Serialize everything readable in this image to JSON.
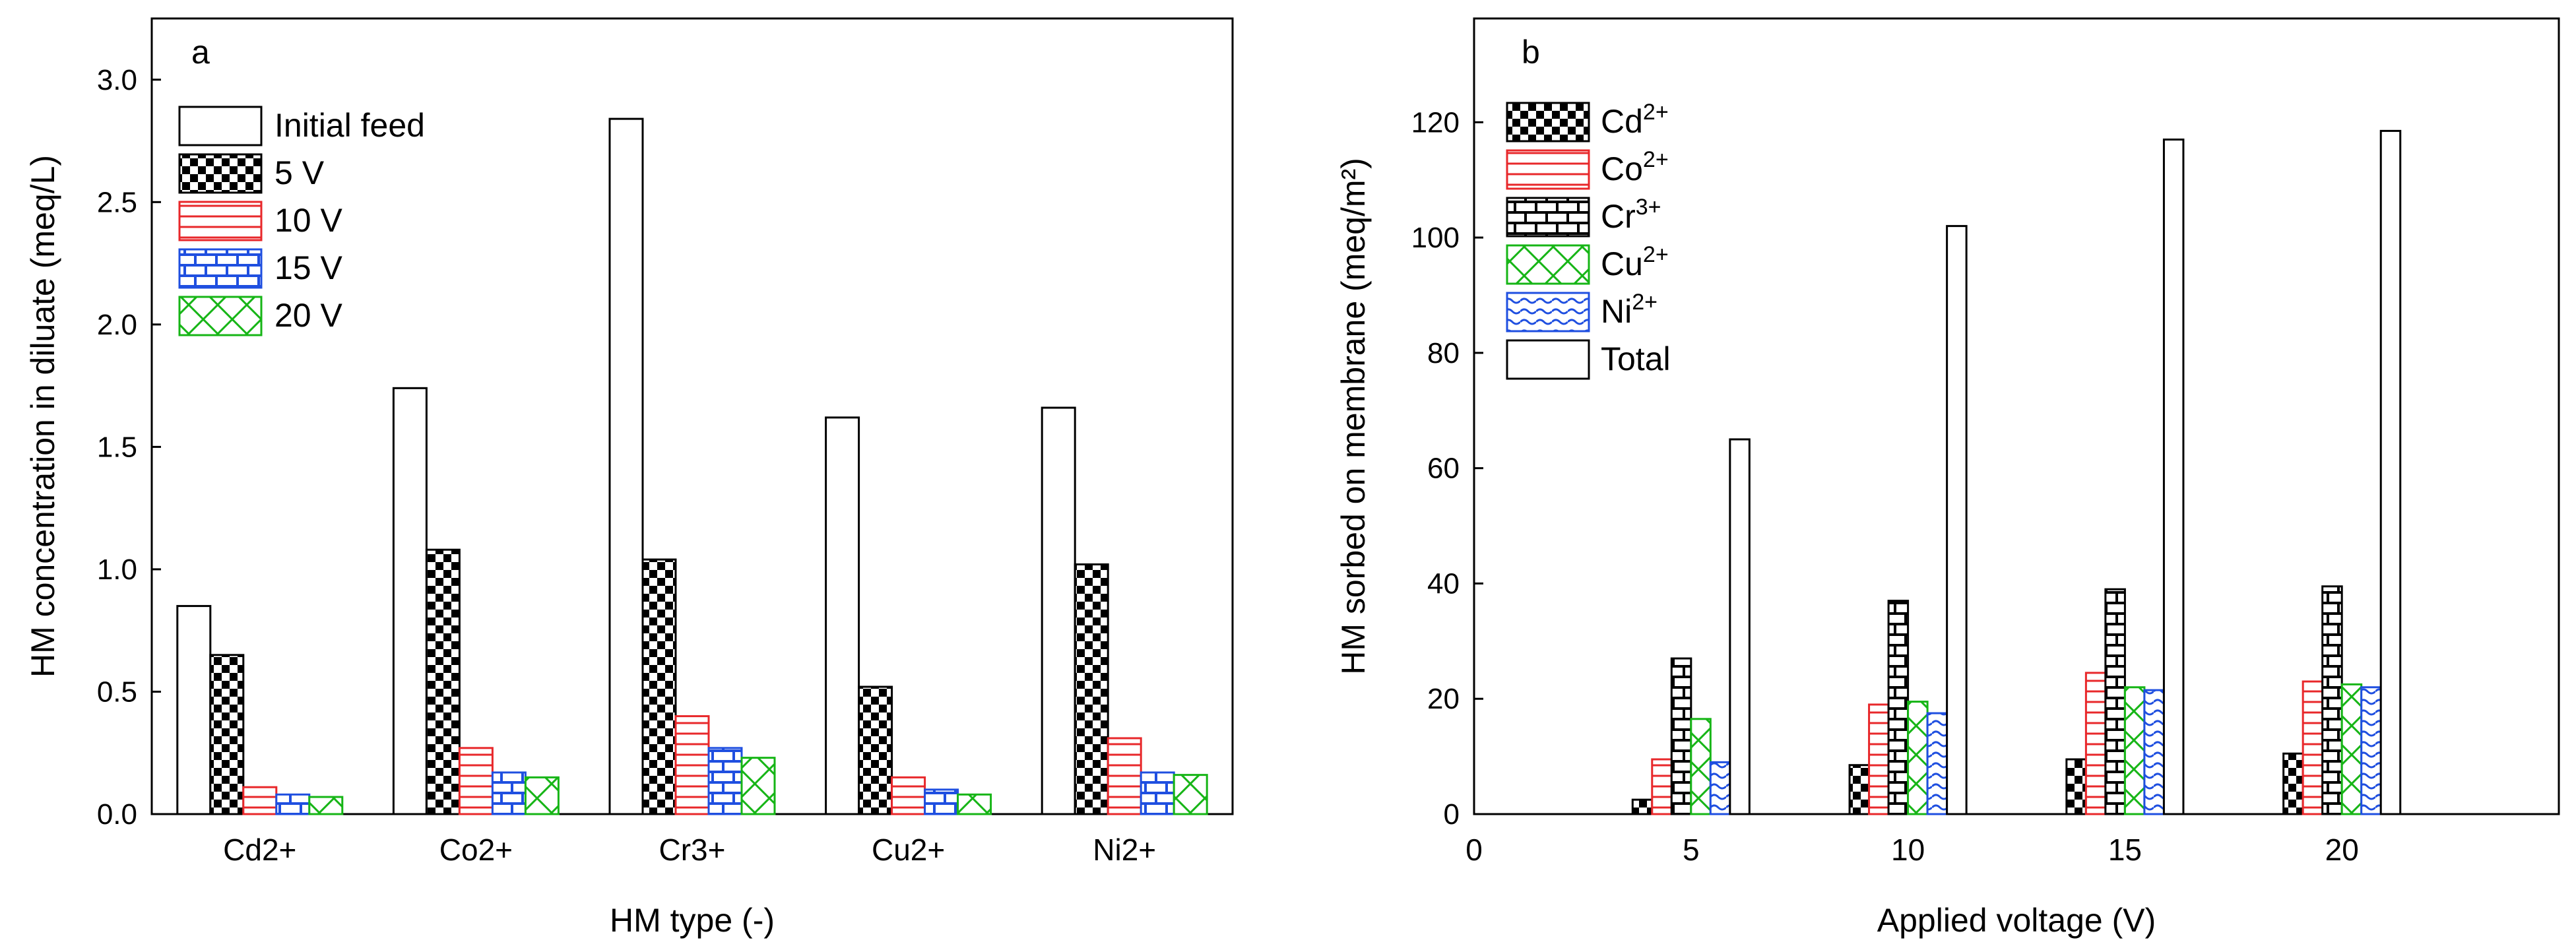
{
  "chart_data": [
    {
      "panel_label": "a",
      "type": "bar",
      "xlabel": "HM type (-)",
      "ylabel": "HM concentration in diluate (meq/L)",
      "ylim": [
        0,
        3.25
      ],
      "yticks": [
        "0.0",
        "0.5",
        "1.0",
        "1.5",
        "2.0",
        "2.5",
        "3.0"
      ],
      "categories": [
        "Cd2+",
        "Co2+",
        "Cr3+",
        "Cu2+",
        "Ni2+"
      ],
      "legend_position": "top-left",
      "series": [
        {
          "name": "Initial feed",
          "pattern": "none",
          "color": "#000000",
          "values": [
            0.85,
            1.74,
            2.84,
            1.62,
            1.66
          ]
        },
        {
          "name": "5 V",
          "pattern": "checker",
          "color": "#000000",
          "values": [
            0.65,
            1.08,
            1.04,
            0.52,
            1.02
          ]
        },
        {
          "name": "10 V",
          "pattern": "hlines",
          "color": "#e8282b",
          "values": [
            0.11,
            0.27,
            0.4,
            0.15,
            0.31
          ]
        },
        {
          "name": "15 V",
          "pattern": "brick",
          "color": "#1f4fe0",
          "values": [
            0.08,
            0.17,
            0.27,
            0.1,
            0.17
          ]
        },
        {
          "name": "20 V",
          "pattern": "cross",
          "color": "#16b516",
          "values": [
            0.07,
            0.15,
            0.23,
            0.08,
            0.16
          ]
        }
      ]
    },
    {
      "panel_label": "b",
      "type": "bar",
      "xlabel": "Applied voltage (V)",
      "ylabel": "HM sorbed on membrane (meq/m²)",
      "xlim": [
        0,
        25
      ],
      "xticks": [
        "0",
        "5",
        "10",
        "15",
        "20"
      ],
      "ylim": [
        0,
        138
      ],
      "yticks": [
        "0",
        "20",
        "40",
        "60",
        "80",
        "100",
        "120"
      ],
      "categories": [
        5,
        10,
        15,
        20
      ],
      "legend_position": "top-left",
      "series": [
        {
          "name": "Cd",
          "sup": "2+",
          "pattern": "checker",
          "color": "#000000",
          "values": [
            2.5,
            8.5,
            9.5,
            10.5
          ]
        },
        {
          "name": "Co",
          "sup": "2+",
          "pattern": "hlines",
          "color": "#e8282b",
          "values": [
            9.5,
            19,
            24.5,
            23
          ]
        },
        {
          "name": "Cr",
          "sup": "3+",
          "pattern": "brick",
          "color": "#000000",
          "values": [
            27,
            37,
            39,
            39.5
          ]
        },
        {
          "name": "Cu",
          "sup": "2+",
          "pattern": "cross",
          "color": "#16b516",
          "values": [
            16.5,
            19.5,
            22,
            22.5
          ]
        },
        {
          "name": "Ni",
          "sup": "2+",
          "pattern": "wave",
          "color": "#1f4fe0",
          "values": [
            9,
            17.5,
            21.5,
            22
          ]
        },
        {
          "name": "Total",
          "sup": "",
          "pattern": "none",
          "color": "#000000",
          "values": [
            65,
            102,
            117,
            118.5
          ]
        }
      ]
    }
  ]
}
